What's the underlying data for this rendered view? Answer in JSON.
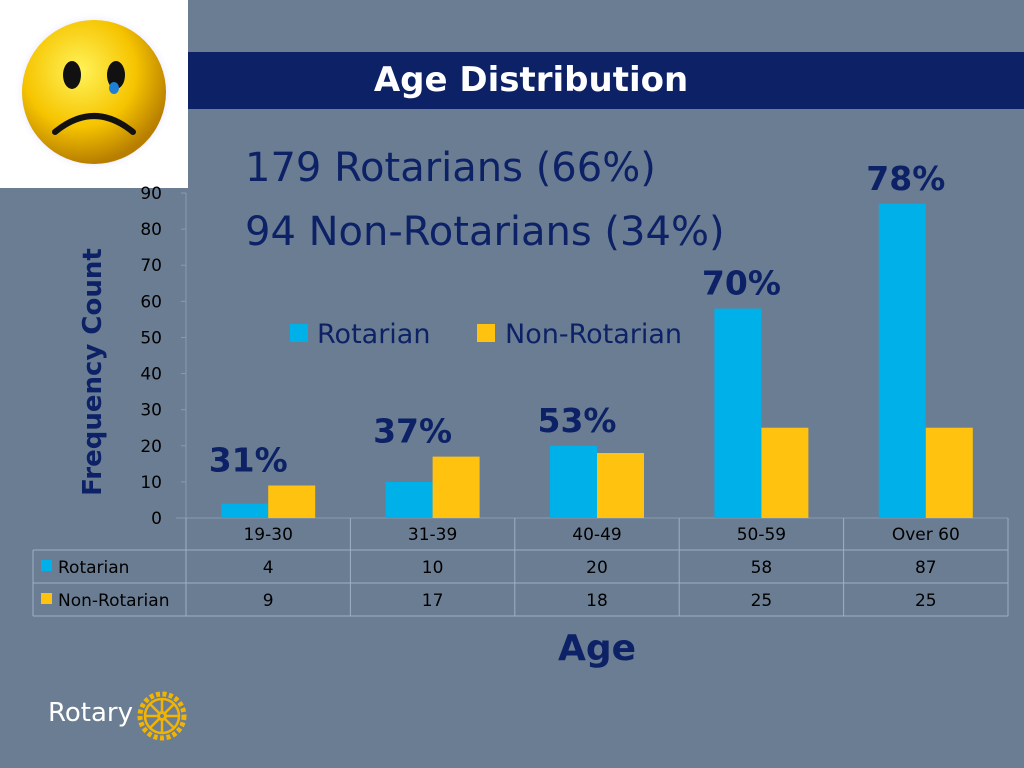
{
  "header": {
    "title": "Age Distribution"
  },
  "summary": {
    "line1": "179 Rotarians (66%)",
    "line2": "94 Non-Rotarians (34%)"
  },
  "chart_data": {
    "type": "bar",
    "title": "Age Distribution",
    "xlabel": "Age",
    "ylabel": "Frequency Count",
    "categories": [
      "19-30",
      "31-39",
      "40-49",
      "50-59",
      "Over 60"
    ],
    "series": [
      {
        "name": "Rotarian",
        "values": [
          4,
          10,
          20,
          58,
          87
        ],
        "color": "#00b0e8"
      },
      {
        "name": "Non-Rotarian",
        "values": [
          9,
          17,
          18,
          25,
          25
        ],
        "color": "#ffc20e"
      }
    ],
    "ylim": [
      0,
      90
    ],
    "yticks": [
      0,
      10,
      20,
      30,
      40,
      50,
      60,
      70,
      80,
      90
    ],
    "percent_labels": [
      "31%",
      "37%",
      "53%",
      "70%",
      "78%"
    ],
    "legend_position": "top-center",
    "grid": false,
    "data_table": true
  },
  "logo": {
    "text": "Rotary",
    "icon": "rotary-wheel-icon"
  },
  "decor": {
    "icon": "sad-face-icon"
  }
}
